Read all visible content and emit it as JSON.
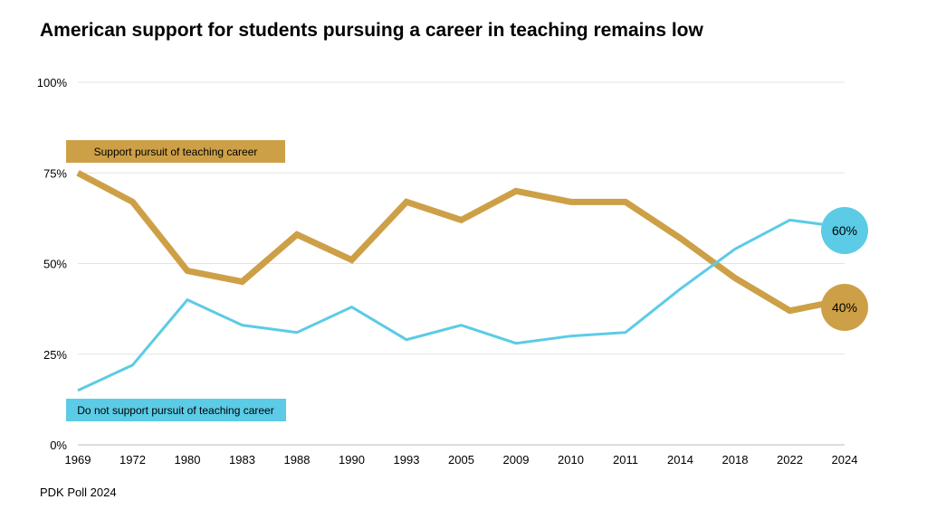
{
  "chart_data": {
    "type": "line",
    "title": "American support for students pursuing a career in teaching remains low",
    "source": "PDK Poll 2024",
    "categories": [
      "1969",
      "1972",
      "1980",
      "1983",
      "1988",
      "1990",
      "1993",
      "2005",
      "2009",
      "2010",
      "2011",
      "2014",
      "2018",
      "2022",
      "2024"
    ],
    "yticks": [
      "0%",
      "25%",
      "50%",
      "75%",
      "100%"
    ],
    "ylim": [
      0,
      100
    ],
    "grid": true,
    "series": [
      {
        "name": "Support pursuit of teaching career",
        "color": "#CDA047",
        "values": [
          75,
          67,
          48,
          45,
          58,
          51,
          67,
          62,
          70,
          67,
          67,
          57,
          46,
          37,
          40
        ],
        "end_label": "40%"
      },
      {
        "name": "Do not support pursuit of teaching career",
        "color": "#5BCBE6",
        "values": [
          15,
          22,
          40,
          33,
          31,
          38,
          29,
          33,
          28,
          30,
          31,
          43,
          54,
          62,
          60
        ],
        "end_label": "60%"
      }
    ]
  }
}
